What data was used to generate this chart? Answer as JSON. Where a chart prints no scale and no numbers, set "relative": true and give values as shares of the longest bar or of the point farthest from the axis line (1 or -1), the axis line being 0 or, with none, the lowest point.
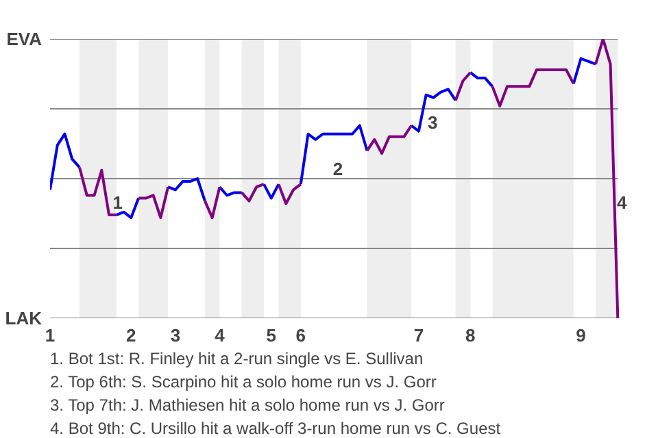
{
  "chart_data": {
    "type": "line",
    "relative": true,
    "categories": [
      "1",
      null,
      null,
      null,
      null,
      null,
      null,
      null,
      null,
      null,
      null,
      "2",
      null,
      null,
      null,
      null,
      null,
      "3",
      null,
      null,
      null,
      null,
      null,
      "4",
      null,
      null,
      null,
      null,
      null,
      null,
      "5",
      null,
      null,
      null,
      "6",
      null,
      null,
      null,
      null,
      null,
      null,
      null,
      null,
      null,
      null,
      null,
      null,
      null,
      null,
      null,
      "7",
      null,
      null,
      null,
      null,
      null,
      null,
      "8",
      null,
      null,
      null,
      null,
      null,
      null,
      null,
      null,
      null,
      null,
      null,
      null,
      null,
      null,
      "9",
      null,
      null,
      null,
      null,
      null
    ],
    "series": [
      {
        "color": "#0000ee",
        "values": [
          0.46,
          0.62,
          0.66,
          0.57,
          0.54,
          null,
          null,
          null,
          null,
          0.37,
          0.38,
          0.36,
          0.43,
          null,
          null,
          null,
          0.47,
          0.46,
          0.49,
          0.49,
          0.5,
          0.42,
          null,
          0.47,
          0.44,
          0.45,
          0.45,
          null,
          null,
          0.48,
          0.43,
          0.48,
          null,
          null,
          0.48,
          0.66,
          0.64,
          0.66,
          0.66,
          0.66,
          0.66,
          0.66,
          0.69,
          0.6,
          null,
          null,
          null,
          null,
          null,
          0.69,
          0.67,
          0.8,
          0.79,
          0.81,
          0.82,
          0.78,
          null,
          0.88,
          0.86,
          0.86,
          0.83,
          null,
          null,
          null,
          null,
          null,
          null,
          null,
          null,
          null,
          null,
          0.84,
          0.93,
          0.92,
          0.91,
          null,
          null,
          null
        ]
      },
      {
        "color": "#800080",
        "values": [
          null,
          null,
          null,
          null,
          0.54,
          0.44,
          0.44,
          0.53,
          0.37,
          0.37,
          null,
          null,
          0.43,
          0.43,
          0.44,
          0.36,
          0.47,
          null,
          null,
          null,
          null,
          0.42,
          0.36,
          0.47,
          null,
          null,
          0.45,
          0.42,
          0.47,
          0.48,
          null,
          0.48,
          0.41,
          0.46,
          0.48,
          null,
          null,
          null,
          null,
          null,
          null,
          null,
          null,
          0.6,
          0.64,
          0.59,
          0.65,
          0.65,
          0.65,
          0.69,
          null,
          null,
          null,
          null,
          null,
          0.78,
          0.85,
          0.88,
          null,
          null,
          0.83,
          0.76,
          0.83,
          0.83,
          0.83,
          0.83,
          0.89,
          0.89,
          0.89,
          0.89,
          0.89,
          0.84,
          null,
          null,
          0.91,
          1.0,
          0.91,
          0.0
        ]
      }
    ],
    "grid": "y",
    "line_style": "solid",
    "annotations": [
      "EVA",
      "LAK",
      "1",
      "2",
      "3",
      "4",
      "1. Bot 1st: R. Finley hit a 2-run single vs E. Sullivan",
      "2. Top 6th: S. Scarpino hit a solo home run vs J. Gorr",
      "3. Top 7th: J. Mathiesen hit a solo home run vs J. Gorr",
      "4. Bot 9th: C. Ursillo hit a walk-off 3-run home run vs C. Guest"
    ]
  }
}
